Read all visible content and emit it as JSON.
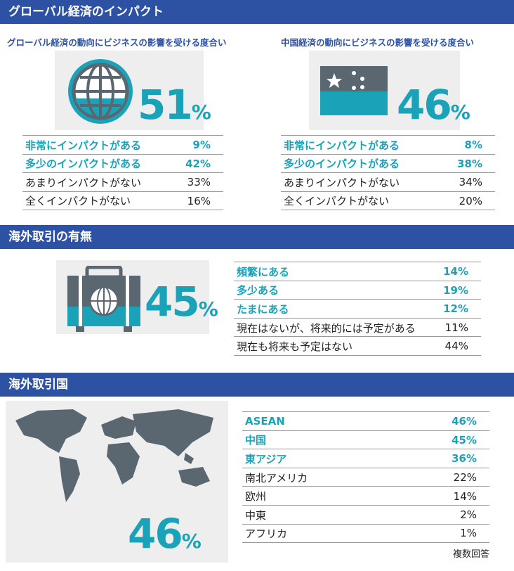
{
  "sections": [
    {
      "title": "グローバル経済のインパクト",
      "panels": [
        {
          "subtitle": "グローバル経済の動向にビジネスの影響を受ける度合い",
          "stat": {
            "number": "51",
            "unit": "%"
          },
          "rows": [
            {
              "label": "非常にインパクトがある",
              "value": "9%",
              "highlight": true
            },
            {
              "label": "多少のインパクトがある",
              "value": "42%",
              "highlight": true
            },
            {
              "label": "あまりインパクトがない",
              "value": "33%",
              "highlight": false
            },
            {
              "label": "全くインパクトがない",
              "value": "16%",
              "highlight": false
            }
          ]
        },
        {
          "subtitle": "中国経済の動向にビジネスの影響を受ける度合い",
          "stat": {
            "number": "46",
            "unit": "%"
          },
          "rows": [
            {
              "label": "非常にインパクトがある",
              "value": "8%",
              "highlight": true
            },
            {
              "label": "多少のインパクトがある",
              "value": "38%",
              "highlight": true
            },
            {
              "label": "あまりインパクトがない",
              "value": "34%",
              "highlight": false
            },
            {
              "label": "全くインパクトがない",
              "value": "20%",
              "highlight": false
            }
          ]
        }
      ]
    },
    {
      "title": "海外取引の有無",
      "panels": [
        {
          "stat": {
            "number": "45",
            "unit": "%"
          },
          "rows": [
            {
              "label": "頻繁にある",
              "value": "14%",
              "highlight": true
            },
            {
              "label": "多少ある",
              "value": "19%",
              "highlight": true
            },
            {
              "label": "たまにある",
              "value": "12%",
              "highlight": true
            },
            {
              "label": "現在はないが、将来的には予定がある",
              "value": "11%",
              "highlight": false
            },
            {
              "label": "現在も将来も予定はない",
              "value": "44%",
              "highlight": false
            }
          ]
        }
      ]
    },
    {
      "title": "海外取引国",
      "panels": [
        {
          "stat": {
            "number": "46",
            "unit": "%"
          },
          "rows": [
            {
              "label": "ASEAN",
              "value": "46%",
              "highlight": true
            },
            {
              "label": "中国",
              "value": "45%",
              "highlight": true
            },
            {
              "label": "東アジア",
              "value": "36%",
              "highlight": true
            },
            {
              "label": "南北アメリカ",
              "value": "22%",
              "highlight": false
            },
            {
              "label": "欧州",
              "value": "14%",
              "highlight": false
            },
            {
              "label": "中東",
              "value": "2%",
              "highlight": false
            },
            {
              "label": "アフリカ",
              "value": "1%",
              "highlight": false
            }
          ],
          "note": "複数回答"
        }
      ]
    }
  ]
}
